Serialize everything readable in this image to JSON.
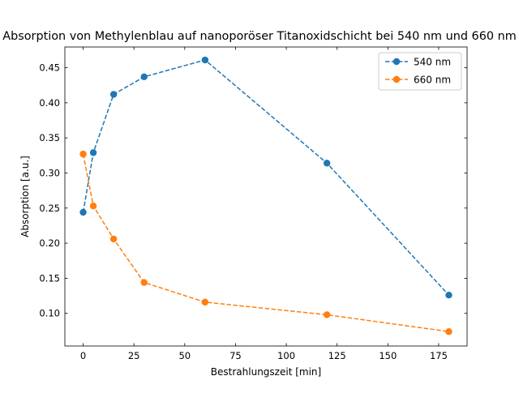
{
  "chart_data": {
    "type": "line",
    "title": "Absorption von Methylenblau auf nanoporöser Titanoxidschicht bei 540 nm und 660 nm",
    "xlabel": "Bestrahlungszeit [min]",
    "ylabel": "Absorption [a.u.]",
    "xlim": [
      -9,
      189
    ],
    "ylim": [
      0.0535,
      0.4795
    ],
    "xticks": [
      0,
      25,
      50,
      75,
      100,
      125,
      150,
      175
    ],
    "yticks": [
      0.1,
      0.15,
      0.2,
      0.25,
      0.3,
      0.35,
      0.4,
      0.45
    ],
    "xtick_labels": [
      "0",
      "25",
      "50",
      "75",
      "100",
      "125",
      "150",
      "175"
    ],
    "ytick_labels": [
      "0.10",
      "0.15",
      "0.20",
      "0.25",
      "0.30",
      "0.35",
      "0.40",
      "0.45"
    ],
    "grid": false,
    "legend_position": "top-right",
    "x": [
      0,
      5,
      15,
      30,
      60,
      120,
      180
    ],
    "series": [
      {
        "name": "540 nm",
        "color": "#1f77b4",
        "values": [
          0.244,
          0.329,
          0.412,
          0.437,
          0.461,
          0.314,
          0.126
        ]
      },
      {
        "name": "660 nm",
        "color": "#ff7f0e",
        "values": [
          0.327,
          0.253,
          0.206,
          0.144,
          0.116,
          0.098,
          0.074
        ]
      }
    ]
  }
}
